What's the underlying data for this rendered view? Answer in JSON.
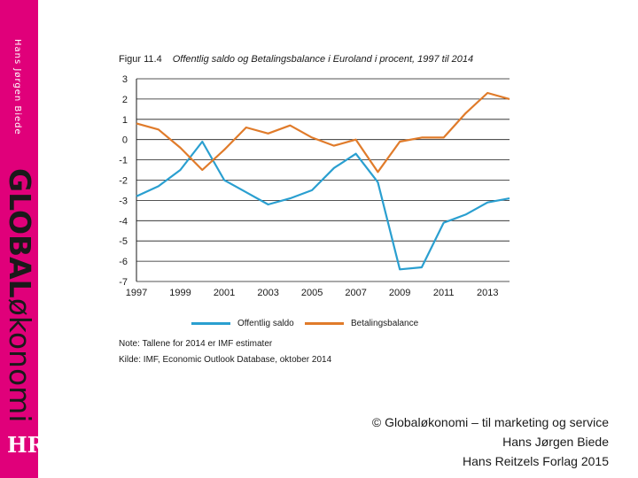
{
  "sidebar": {
    "author": "Hans Jørgen Biede",
    "brand_bold": "GLOBAL",
    "brand_light": "økonomi",
    "logo": "HR"
  },
  "figure": {
    "number": "Figur 11.4",
    "title": "Offentlig saldo og Betalingsbalance i Euroland i procent, 1997 til 2014"
  },
  "colors": {
    "series1": "#2a9fd0",
    "series2": "#e07b2a",
    "grid": "#1a1a1a",
    "sidebar": "#e0007a"
  },
  "chart_data": {
    "type": "line",
    "title": "Offentlig saldo og Betalingsbalance i Euroland i procent, 1997 til 2014",
    "xlabel": "",
    "ylabel": "",
    "x": [
      1997,
      1998,
      1999,
      2000,
      2001,
      2002,
      2003,
      2004,
      2005,
      2006,
      2007,
      2008,
      2009,
      2010,
      2011,
      2012,
      2013,
      2014
    ],
    "x_ticks": [
      "1997",
      "1999",
      "2001",
      "2003",
      "2005",
      "2007",
      "2009",
      "2011",
      "2013"
    ],
    "y_ticks": [
      "3",
      "2",
      "1",
      "0",
      "-1",
      "-2",
      "-3",
      "-4",
      "-5",
      "-6",
      "-7"
    ],
    "ylim": [
      -7,
      3
    ],
    "xlim": [
      1997,
      2014
    ],
    "grid": true,
    "legend_position": "bottom",
    "series": [
      {
        "name": "Offentlig saldo",
        "values": [
          -2.8,
          -2.3,
          -1.5,
          -0.1,
          -2.0,
          -2.6,
          -3.2,
          -2.9,
          -2.5,
          -1.4,
          -0.7,
          -2.1,
          -6.4,
          -6.3,
          -4.1,
          -3.7,
          -3.1,
          -2.9
        ]
      },
      {
        "name": "Betalingsbalance",
        "values": [
          0.8,
          0.5,
          -0.4,
          -1.5,
          -0.5,
          0.6,
          0.3,
          0.7,
          0.1,
          -0.3,
          0.0,
          -1.6,
          -0.1,
          0.1,
          0.1,
          1.3,
          2.3,
          2.0
        ]
      }
    ]
  },
  "legend": [
    {
      "label": "Offentlig saldo"
    },
    {
      "label": "Betalingsbalance"
    }
  ],
  "notes": {
    "note": "Note: Tallene for 2014 er IMF estimater",
    "source": "Kilde: IMF, Economic Outlook Database, oktober 2014"
  },
  "credit": {
    "line1": "© Globaløkonomi – til marketing og service",
    "line2": "Hans Jørgen Biede",
    "line3": "Hans Reitzels Forlag 2015"
  }
}
